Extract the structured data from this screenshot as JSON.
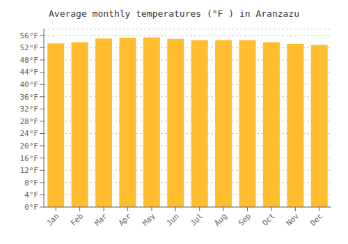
{
  "chart_data": {
    "type": "bar",
    "title": "Average monthly temperatures (°F ) in Aranzazu",
    "categories": [
      "Jan",
      "Feb",
      "Mar",
      "Apr",
      "May",
      "Jun",
      "Jul",
      "Aug",
      "Sep",
      "Oct",
      "Nov",
      "Dec"
    ],
    "values": [
      53.4,
      53.8,
      55.0,
      55.2,
      55.4,
      54.9,
      54.5,
      54.5,
      54.5,
      53.8,
      53.2,
      52.9
    ],
    "color": "#FFBE30",
    "ylim": [
      0,
      58
    ],
    "yticks": [
      {
        "value": 0,
        "label": "0°F"
      },
      {
        "value": 4,
        "label": "4°F"
      },
      {
        "value": 8,
        "label": "8°F"
      },
      {
        "value": 12,
        "label": "12°F"
      },
      {
        "value": 16,
        "label": "16°F"
      },
      {
        "value": 20,
        "label": "20°F"
      },
      {
        "value": 24,
        "label": "24°F"
      },
      {
        "value": 28,
        "label": "28°F"
      },
      {
        "value": 32,
        "label": "32°F"
      },
      {
        "value": 36,
        "label": "36°F"
      },
      {
        "value": 40,
        "label": "40°F"
      },
      {
        "value": 44,
        "label": "44°F"
      },
      {
        "value": 48,
        "label": "48°F"
      },
      {
        "value": 52,
        "label": "52°F"
      },
      {
        "value": 56,
        "label": "56°F"
      }
    ],
    "grid": true
  }
}
